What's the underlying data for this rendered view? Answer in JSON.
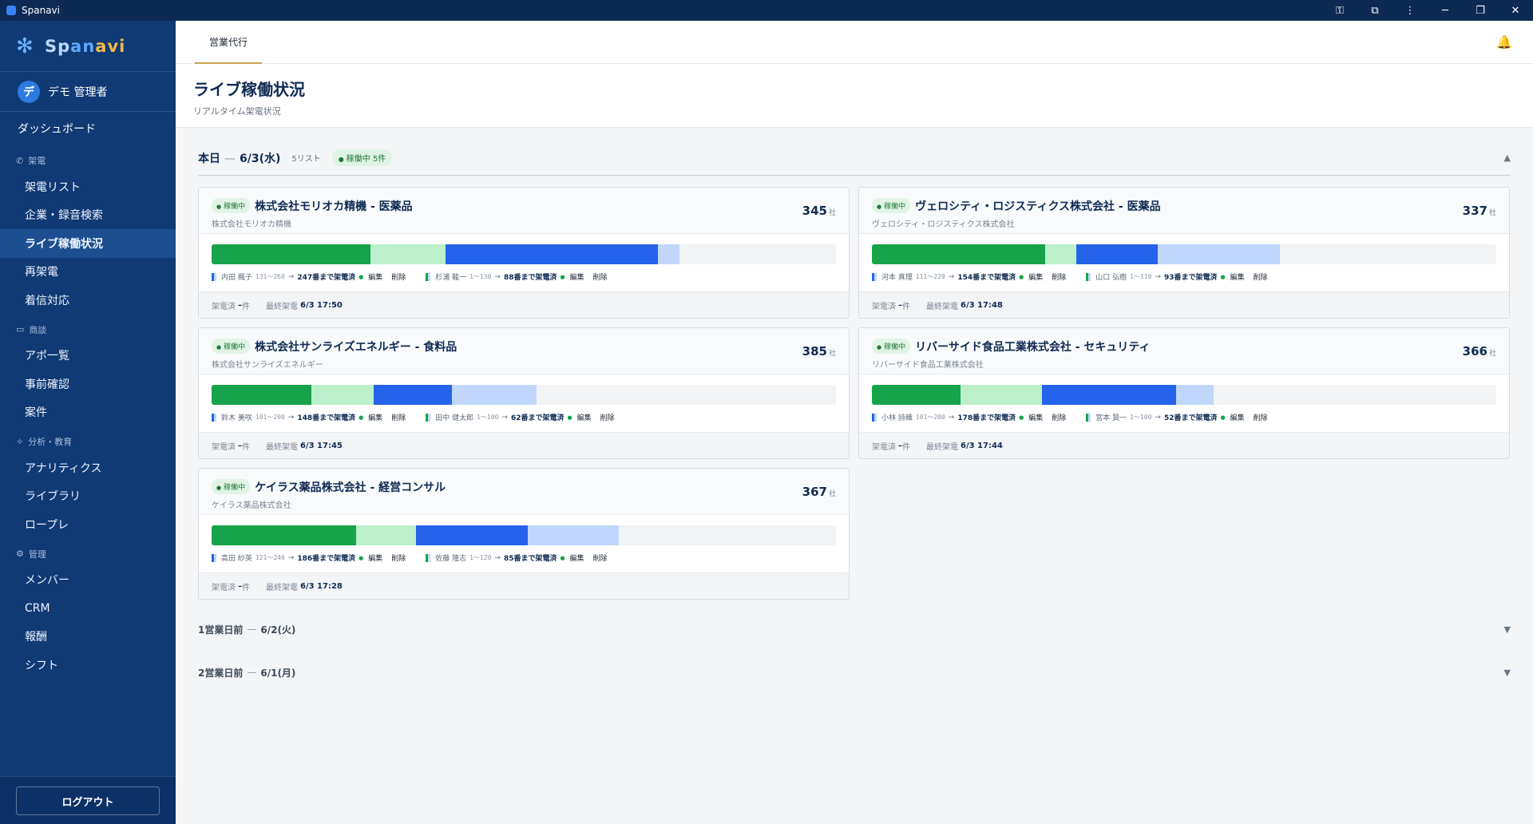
{
  "window": {
    "title": "Spanavi"
  },
  "sidebar": {
    "logo_parts": [
      "Sp",
      "an",
      "avi"
    ],
    "user": {
      "avatar": "デ",
      "name": "デモ 管理者"
    },
    "dashboard": "ダッシュボード",
    "sections": [
      {
        "label": "架電",
        "icon": "phone-icon",
        "items": [
          "架電リスト",
          "企業・録音検索",
          "ライブ稼働状況",
          "再架電",
          "着信対応"
        ]
      },
      {
        "label": "商談",
        "icon": "calendar-icon",
        "items": [
          "アポ一覧",
          "事前確認",
          "案件"
        ]
      },
      {
        "label": "分析・教育",
        "icon": "sparkle-icon",
        "items": [
          "アナリティクス",
          "ライブラリ",
          "ロープレ"
        ]
      },
      {
        "label": "管理",
        "icon": "gear-icon",
        "items": [
          "メンバー",
          "CRM",
          "報酬",
          "シフト"
        ]
      }
    ],
    "active_item": "ライブ稼働状況",
    "logout": "ログアウト"
  },
  "topnav": {
    "tab": "営業代行"
  },
  "page": {
    "title": "ライブ稼働状況",
    "subtitle": "リアルタイム架電状況"
  },
  "today": {
    "label": "本日",
    "date": "6/3(水)",
    "list_count": "5リスト",
    "live_badge": "稼働中 5件"
  },
  "cards": [
    {
      "badge": "稼働中",
      "title": "株式会社モリオカ精機 - 医薬品",
      "company": "株式会社モリオカ精機",
      "total": "345",
      "unit": "社",
      "segments": [
        0.255,
        0.12,
        0.34,
        0.035
      ],
      "agents": [
        {
          "name": "内田 楓子",
          "range": "131〜260",
          "progress": "247番まで架電済",
          "color": "#2563eb"
        },
        {
          "name": "杉浦 龍一",
          "range": "1〜130",
          "progress": "88番まで架電済",
          "color": "#17a34a"
        }
      ],
      "done_label": "架電済",
      "done_value": "–",
      "done_unit": "件",
      "last_label": "最終架電",
      "last_value": "6/3 17:50"
    },
    {
      "badge": "稼働中",
      "title": "ヴェロシティ・ロジスティクス株式会社 - 医薬品",
      "company": "ヴェロシティ・ロジスティクス株式会社",
      "total": "337",
      "unit": "社",
      "segments": [
        0.278,
        0.05,
        0.13,
        0.195
      ],
      "agents": [
        {
          "name": "河本 真理",
          "range": "111〜220",
          "progress": "154番まで架電済",
          "color": "#2563eb"
        },
        {
          "name": "山口 弘樹",
          "range": "1〜110",
          "progress": "93番まで架電済",
          "color": "#17a34a"
        }
      ],
      "done_label": "架電済",
      "done_value": "–",
      "done_unit": "件",
      "last_label": "最終架電",
      "last_value": "6/3 17:48"
    },
    {
      "badge": "稼働中",
      "title": "株式会社サンライズエネルギー - 食料品",
      "company": "株式会社サンライズエネルギー",
      "total": "385",
      "unit": "社",
      "segments": [
        0.16,
        0.1,
        0.125,
        0.135
      ],
      "agents": [
        {
          "name": "鈴木 美咲",
          "range": "101〜200",
          "progress": "148番まで架電済",
          "color": "#2563eb"
        },
        {
          "name": "田中 健太郎",
          "range": "1〜100",
          "progress": "62番まで架電済",
          "color": "#17a34a"
        }
      ],
      "done_label": "架電済",
      "done_value": "–",
      "done_unit": "件",
      "last_label": "最終架電",
      "last_value": "6/3 17:45"
    },
    {
      "badge": "稼働中",
      "title": "リバーサイド食品工業株式会社 - セキュリティ",
      "company": "リバーサイド食品工業株式会社",
      "total": "366",
      "unit": "社",
      "segments": [
        0.142,
        0.13,
        0.215,
        0.06
      ],
      "agents": [
        {
          "name": "小林 詩織",
          "range": "101〜200",
          "progress": "178番まで架電済",
          "color": "#2563eb"
        },
        {
          "name": "宮本 賢一",
          "range": "1〜100",
          "progress": "52番まで架電済",
          "color": "#17a34a"
        }
      ],
      "done_label": "架電済",
      "done_value": "–",
      "done_unit": "件",
      "last_label": "最終架電",
      "last_value": "6/3 17:44"
    },
    {
      "badge": "稼働中",
      "title": "ケイラス薬品株式会社 - 経営コンサル",
      "company": "ケイラス薬品株式会社",
      "total": "367",
      "unit": "社",
      "segments": [
        0.232,
        0.095,
        0.18,
        0.145
      ],
      "agents": [
        {
          "name": "高田 紗英",
          "range": "121〜240",
          "progress": "186番まで架電済",
          "color": "#2563eb"
        },
        {
          "name": "佐藤 隆志",
          "range": "1〜120",
          "progress": "85番まで架電済",
          "color": "#17a34a"
        }
      ],
      "done_label": "架電済",
      "done_value": "–",
      "done_unit": "件",
      "last_label": "最終架電",
      "last_value": "6/3 17:28"
    }
  ],
  "actions": {
    "edit": "編集",
    "delete": "削除"
  },
  "previous_days": [
    {
      "label": "1営業日前",
      "date": "6/2(火)"
    },
    {
      "label": "2営業日前",
      "date": "6/1(月)"
    }
  ]
}
